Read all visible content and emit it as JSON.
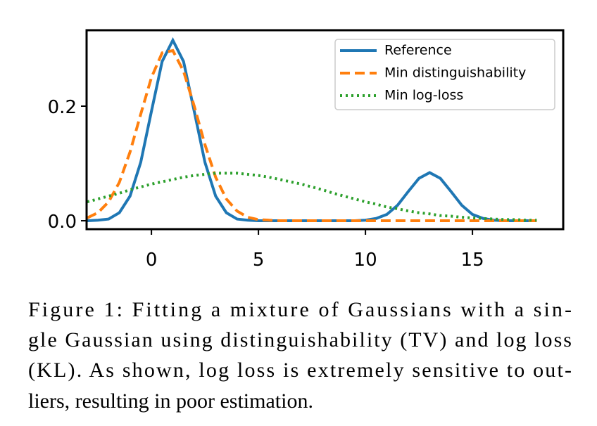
{
  "chart_data": {
    "type": "line",
    "x": [
      -3,
      -2.5,
      -2,
      -1.5,
      -1,
      -0.5,
      0,
      0.5,
      1,
      1.5,
      2,
      2.5,
      3,
      3.5,
      4,
      4.5,
      5,
      5.5,
      6,
      6.5,
      7,
      7.5,
      8,
      8.5,
      9,
      9.5,
      10,
      10.5,
      11,
      11.5,
      12,
      12.5,
      13,
      13.5,
      14,
      14.5,
      15,
      15.5,
      16,
      16.5,
      17,
      17.5,
      18
    ],
    "series": [
      {
        "name": "Reference",
        "color": "#1f77b4",
        "linestyle": "solid",
        "values": [
          0,
          0.001,
          0.003,
          0.014,
          0.043,
          0.102,
          0.191,
          0.278,
          0.315,
          0.278,
          0.191,
          0.102,
          0.043,
          0.014,
          0.003,
          0.001,
          0,
          0,
          0,
          0,
          0,
          0,
          0,
          0,
          0,
          0,
          0.001,
          0.004,
          0.011,
          0.027,
          0.051,
          0.074,
          0.084,
          0.074,
          0.051,
          0.027,
          0.011,
          0.004,
          0.001,
          0,
          0,
          0,
          0
        ]
      },
      {
        "name": "Min distinguishability",
        "color": "#ff7f0e",
        "linestyle": "dashed",
        "values": [
          0.005,
          0.014,
          0.033,
          0.067,
          0.12,
          0.186,
          0.25,
          0.293,
          0.297,
          0.261,
          0.2,
          0.133,
          0.076,
          0.038,
          0.017,
          0.006,
          0.002,
          0.001,
          0,
          0,
          0,
          0,
          0,
          0,
          0,
          0,
          0,
          0,
          0,
          0,
          0,
          0,
          0,
          0,
          0,
          0,
          0,
          0,
          0,
          0,
          0,
          0,
          0
        ]
      },
      {
        "name": "Min log-loss",
        "color": "#2ca02c",
        "linestyle": "dotted",
        "values": [
          0.033,
          0.038,
          0.043,
          0.048,
          0.054,
          0.059,
          0.064,
          0.068,
          0.072,
          0.076,
          0.079,
          0.081,
          0.083,
          0.083,
          0.083,
          0.081,
          0.079,
          0.076,
          0.072,
          0.068,
          0.064,
          0.059,
          0.054,
          0.048,
          0.043,
          0.038,
          0.033,
          0.029,
          0.024,
          0.021,
          0.017,
          0.014,
          0.012,
          0.009,
          0.008,
          0.006,
          0.005,
          0.004,
          0.003,
          0.002,
          0.002,
          0.001,
          0.001
        ]
      }
    ],
    "xlim": [
      -3.03,
      19.24
    ],
    "ylim": [
      -0.0147,
      0.3325
    ],
    "xticks": [
      0,
      5,
      10,
      15
    ],
    "yticks": [
      {
        "value": 0,
        "label": "0.0"
      },
      {
        "value": 0.2,
        "label": "0.2"
      }
    ],
    "grid": false,
    "legend": "upper right"
  },
  "caption": {
    "lines": [
      "Figure 1:  Fitting a mixture of Gaussians with a sin-",
      "gle Gaussian using distinguishability (TV) and log loss",
      "(KL). As shown, log loss is extremely sensitive to out-",
      "liers, resulting in poor estimation."
    ]
  }
}
